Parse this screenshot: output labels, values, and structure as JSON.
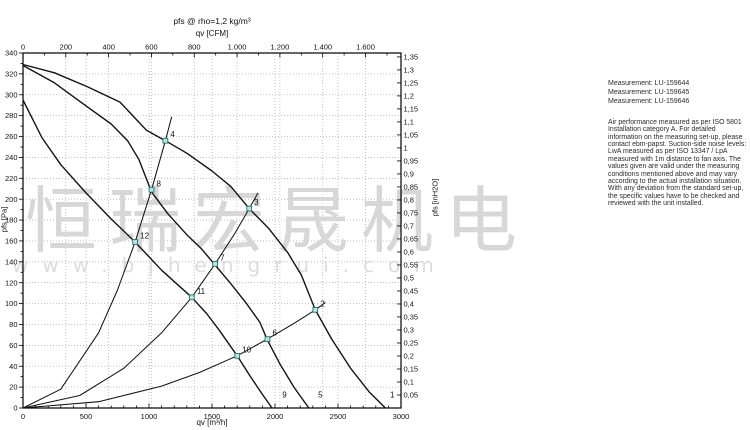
{
  "watermark": {
    "cjk": "恒瑞宏晟机电",
    "url": "www.bjhengrui.com"
  },
  "side_panel": {
    "measurements": [
      "Measurement: LU-159644",
      "Measurement: LU-159645",
      "Measurement: LU-159646"
    ],
    "note": "Air performance measured as per ISO 5801 Installation category A. For detailed information on the measuring set-up, please contact ebm-papst. Suction-side noise levels: LwA measured as per ISO 13347 / LpA measured with 1m distance to fan axis. The values given are valid under the measuring conditions mentioned above and may vary according to the actual installation situation. With any deviation from the standard set-up, the specific values have to be checked and reviewed with the unit installed."
  },
  "chart_data": {
    "type": "line",
    "title": "pfs @ rho=1,2 kg/m³",
    "axes": {
      "top": {
        "label": "qv [CFM]",
        "m3h_per_cfm": 1.699,
        "minor_step_cfm": 100,
        "ticks": [
          {
            "cfm": 0,
            "label": "0"
          },
          {
            "cfm": 200,
            "label": "200"
          },
          {
            "cfm": 400,
            "label": "400"
          },
          {
            "cfm": 600,
            "label": "600"
          },
          {
            "cfm": 800,
            "label": "800"
          },
          {
            "cfm": 1000,
            "label": "1.000"
          },
          {
            "cfm": 1200,
            "label": "1.200"
          },
          {
            "cfm": 1400,
            "label": "1.400"
          },
          {
            "cfm": 1600,
            "label": "1.600"
          }
        ]
      },
      "bottom": {
        "label": "qv [m³/h]",
        "range": [
          0,
          3000
        ],
        "minor_step": 100,
        "major_ticks": [
          0,
          500,
          1000,
          1500,
          2000,
          2500,
          3000
        ],
        "major_labels": [
          "0",
          "500",
          "1000",
          "1500",
          "2000",
          "2500",
          "3000"
        ]
      },
      "left": {
        "label": "pfs [Pa]",
        "range": [
          0,
          340
        ],
        "major_step": 20,
        "minor_step": 10
      },
      "right": {
        "label": "pfs [inH2O]",
        "pa_per_inH2O": 249.089,
        "ticks": [
          {
            "v": 0.05,
            "label": "0,05"
          },
          {
            "v": 0.1,
            "label": "0,1"
          },
          {
            "v": 0.15,
            "label": "0,15"
          },
          {
            "v": 0.2,
            "label": "0,2"
          },
          {
            "v": 0.25,
            "label": "0,25"
          },
          {
            "v": 0.3,
            "label": "0,3"
          },
          {
            "v": 0.35,
            "label": "0,35"
          },
          {
            "v": 0.4,
            "label": "0,4"
          },
          {
            "v": 0.45,
            "label": "0,45"
          },
          {
            "v": 0.5,
            "label": "0,5"
          },
          {
            "v": 0.55,
            "label": "0,55"
          },
          {
            "v": 0.6,
            "label": "0,6"
          },
          {
            "v": 0.65,
            "label": "0,65"
          },
          {
            "v": 0.7,
            "label": "0,7"
          },
          {
            "v": 0.75,
            "label": "0,75"
          },
          {
            "v": 0.8,
            "label": "0,8"
          },
          {
            "v": 0.85,
            "label": "0,85"
          },
          {
            "v": 0.9,
            "label": "0,9"
          },
          {
            "v": 0.95,
            "label": "0,95"
          },
          {
            "v": 1.0,
            "label": "1"
          },
          {
            "v": 1.05,
            "label": "1,05"
          },
          {
            "v": 1.1,
            "label": "1,1"
          },
          {
            "v": 1.15,
            "label": "1,15"
          },
          {
            "v": 1.2,
            "label": "1,2"
          },
          {
            "v": 1.25,
            "label": "1,25"
          },
          {
            "v": 1.3,
            "label": "1,3"
          },
          {
            "v": 1.35,
            "label": "1,35"
          }
        ]
      }
    },
    "fan_curves": [
      {
        "name": "1",
        "points": [
          [
            0,
            329
          ],
          [
            250,
            321
          ],
          [
            505,
            308
          ],
          [
            770,
            293
          ],
          [
            980,
            266
          ],
          [
            1130,
            256
          ],
          [
            1300,
            244
          ],
          [
            1500,
            227
          ],
          [
            1650,
            212
          ],
          [
            1795,
            191
          ],
          [
            1950,
            172
          ],
          [
            2100,
            149
          ],
          [
            2210,
            127
          ],
          [
            2320,
            94
          ],
          [
            2450,
            66
          ],
          [
            2600,
            38
          ],
          [
            2750,
            15
          ],
          [
            2876,
            0
          ]
        ]
      },
      {
        "name": "5",
        "points": [
          [
            0,
            328
          ],
          [
            242,
            312
          ],
          [
            505,
            289
          ],
          [
            700,
            272
          ],
          [
            830,
            256
          ],
          [
            920,
            238
          ],
          [
            1020,
            207
          ],
          [
            1150,
            186
          ],
          [
            1300,
            166
          ],
          [
            1420,
            152
          ],
          [
            1525,
            137
          ],
          [
            1650,
            119
          ],
          [
            1780,
            99
          ],
          [
            1880,
            82
          ],
          [
            1940,
            65
          ],
          [
            2040,
            42
          ],
          [
            2150,
            20
          ],
          [
            2268,
            0
          ]
        ]
      },
      {
        "name": "9",
        "points": [
          [
            0,
            295
          ],
          [
            150,
            259
          ],
          [
            300,
            233
          ],
          [
            500,
            206
          ],
          [
            700,
            181
          ],
          [
            890,
            159
          ],
          [
            1100,
            132
          ],
          [
            1220,
            119
          ],
          [
            1340,
            106
          ],
          [
            1460,
            90
          ],
          [
            1560,
            74
          ],
          [
            1700,
            50
          ],
          [
            1800,
            31
          ],
          [
            1900,
            13
          ],
          [
            1976,
            0
          ]
        ]
      }
    ],
    "system_lines": [
      {
        "name": "system-line-4-8-12",
        "points": [
          [
            0,
            0
          ],
          [
            300,
            18
          ],
          [
            600,
            72
          ],
          [
            750,
            113
          ],
          [
            890,
            159
          ],
          [
            1020,
            209
          ],
          [
            1130,
            256
          ],
          [
            1180,
            279
          ]
        ]
      },
      {
        "name": "system-line-3-7-11",
        "points": [
          [
            0,
            0
          ],
          [
            450,
            12
          ],
          [
            800,
            38
          ],
          [
            1100,
            72
          ],
          [
            1340,
            106
          ],
          [
            1525,
            138
          ],
          [
            1680,
            167
          ],
          [
            1795,
            191
          ],
          [
            1865,
            206
          ]
        ]
      },
      {
        "name": "system-line-2-6-10",
        "points": [
          [
            0,
            0
          ],
          [
            600,
            6
          ],
          [
            1100,
            21
          ],
          [
            1400,
            34
          ],
          [
            1700,
            50
          ],
          [
            1940,
            66
          ],
          [
            2150,
            81
          ],
          [
            2320,
            94
          ],
          [
            2400,
            101
          ]
        ]
      }
    ],
    "operating_points": [
      {
        "id": "4",
        "q": 1130,
        "p": 256
      },
      {
        "id": "8",
        "q": 1020,
        "p": 209
      },
      {
        "id": "12",
        "q": 890,
        "p": 159
      },
      {
        "id": "3",
        "q": 1795,
        "p": 191
      },
      {
        "id": "7",
        "q": 1525,
        "p": 138
      },
      {
        "id": "11",
        "q": 1340,
        "p": 106
      },
      {
        "id": "2",
        "q": 2320,
        "p": 94
      },
      {
        "id": "6",
        "q": 1940,
        "p": 66
      },
      {
        "id": "10",
        "q": 1700,
        "p": 50
      }
    ],
    "curve_end_labels": [
      {
        "label": "9",
        "q": 2075,
        "p": 10
      },
      {
        "label": "5",
        "q": 2360,
        "p": 10
      },
      {
        "label": "1",
        "q": 2930,
        "p": 10
      }
    ]
  }
}
